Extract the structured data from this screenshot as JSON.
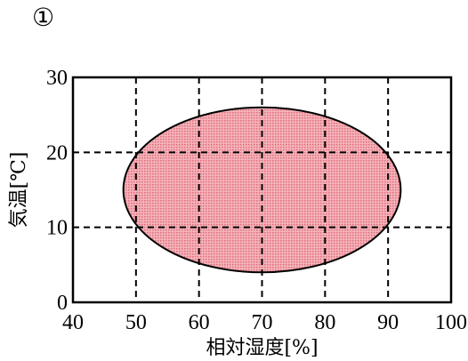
{
  "marker": "①",
  "chart_data": {
    "type": "area",
    "shape": "ellipse",
    "xlabel": "相対湿度[%]",
    "ylabel": "気温[℃]",
    "xlim": [
      40,
      100
    ],
    "ylim": [
      0,
      30
    ],
    "xticks": [
      40,
      50,
      60,
      70,
      80,
      90,
      100
    ],
    "yticks": [
      0,
      10,
      20,
      30
    ],
    "grid": true,
    "region": {
      "center": [
        70,
        15
      ],
      "x_range": [
        48,
        92
      ],
      "y_range": [
        4,
        26
      ],
      "fill_color": "#f0a0a8",
      "stroke_color": "#000000"
    }
  }
}
